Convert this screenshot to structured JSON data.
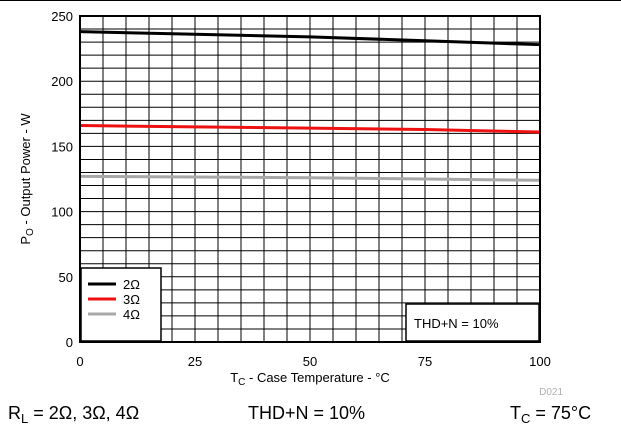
{
  "chart_data": {
    "type": "line",
    "title": "",
    "xlabel": {
      "main": "T",
      "sub": "C",
      "rest": " - Case Temperature - °C"
    },
    "ylabel": {
      "main": "P",
      "sub": "O",
      "rest": " - Output Power - W"
    },
    "xlim": [
      0,
      100
    ],
    "ylim": [
      0,
      250
    ],
    "x_ticks": [
      "0",
      "25",
      "50",
      "75",
      "100"
    ],
    "y_ticks": [
      "0",
      "50",
      "100",
      "150",
      "200",
      "250"
    ],
    "grid": true,
    "legend_position": "bottom-left",
    "series": [
      {
        "name": "2Ω",
        "color": "#000000",
        "x": [
          0,
          25,
          50,
          75,
          100
        ],
        "y": [
          238,
          236,
          234,
          231,
          228
        ]
      },
      {
        "name": "3Ω",
        "color": "#ee1111",
        "x": [
          0,
          25,
          50,
          75,
          100
        ],
        "y": [
          166,
          165,
          164,
          163,
          161
        ]
      },
      {
        "name": "4Ω",
        "color": "#a8a8a8",
        "x": [
          0,
          25,
          50,
          75,
          100
        ],
        "y": [
          127,
          126.5,
          126,
          125,
          124
        ]
      }
    ],
    "annotation": "THD+N = 10%",
    "figure_id": "D021"
  },
  "caption": {
    "rl": {
      "main": "R",
      "sub": "L",
      "rest": " = 2Ω, 3Ω, 4Ω"
    },
    "thd": "THD+N = 10%",
    "tc": {
      "main": "T",
      "sub": "C",
      "rest": " = 75°C"
    }
  }
}
